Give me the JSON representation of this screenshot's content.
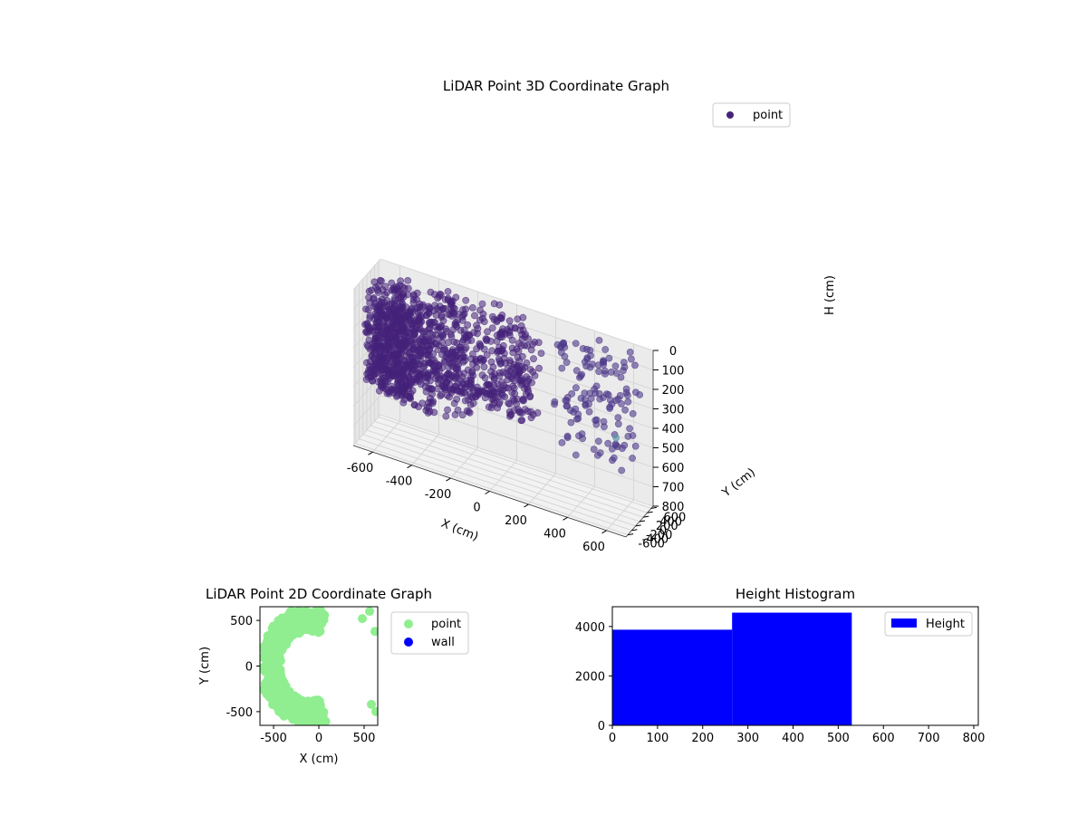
{
  "colors": {
    "point3d": "#46237a",
    "point3d_alt": "#5a9aa8",
    "point2d": "#90ee90",
    "wall": "#0000ff",
    "hist": "#0000ff",
    "pane": "#f2f2f2",
    "grid": "#d4d4d4"
  },
  "chart_data": [
    {
      "type": "scatter",
      "title": "LiDAR Point 3D Coordinate Graph",
      "xlabel": "X (cm)",
      "ylabel": "Y (cm)",
      "zlabel": "H (cm)",
      "xlim": [
        -700,
        700
      ],
      "ylim": [
        -700,
        700
      ],
      "zlim": [
        0,
        800
      ],
      "z_inverted": true,
      "x_ticks": [
        "-600",
        "-400",
        "-200",
        "0",
        "200",
        "400",
        "600"
      ],
      "y_ticks": [
        "-600",
        "-400",
        "-200",
        "0",
        "200",
        "400",
        "600"
      ],
      "z_ticks": [
        "0",
        "100",
        "200",
        "300",
        "400",
        "500",
        "600",
        "700",
        "800"
      ],
      "grid": true,
      "legend": {
        "position": "top-right",
        "entries": [
          "point"
        ]
      },
      "series": [
        {
          "name": "point",
          "note": "dense cylindrical point cloud roughly x -600..300, y -400..650, h 0..800, plus sparse scattered points near x 300..650"
        }
      ]
    },
    {
      "type": "scatter",
      "title": "LiDAR Point 2D Coordinate Graph",
      "xlabel": "X (cm)",
      "ylabel": "Y (cm)",
      "xlim": [
        -650,
        650
      ],
      "ylim": [
        -650,
        650
      ],
      "x_ticks": [
        "-500",
        "0",
        "500"
      ],
      "y_ticks": [
        "-500",
        "0",
        "500"
      ],
      "legend": {
        "position": "outside-right",
        "entries": [
          "point",
          "wall"
        ]
      },
      "series": [
        {
          "name": "point",
          "note": "filled crescent from x -600 to 300, y -650 to 650"
        },
        {
          "name": "wall",
          "points": []
        }
      ]
    },
    {
      "type": "bar",
      "title": "Height Histogram",
      "xlim": [
        0,
        810
      ],
      "ylim": [
        0,
        4800
      ],
      "x_ticks": [
        "0",
        "100",
        "200",
        "300",
        "400",
        "500",
        "600",
        "700",
        "800"
      ],
      "y_ticks": [
        "0",
        "2000",
        "4000"
      ],
      "legend": {
        "position": "top-right",
        "entries": [
          "Height"
        ]
      },
      "bins": [
        {
          "start": 0,
          "end": 265,
          "count": 3870
        },
        {
          "start": 265,
          "end": 530,
          "count": 4560
        },
        {
          "start": 530,
          "end": 795,
          "count": 0
        }
      ]
    }
  ]
}
